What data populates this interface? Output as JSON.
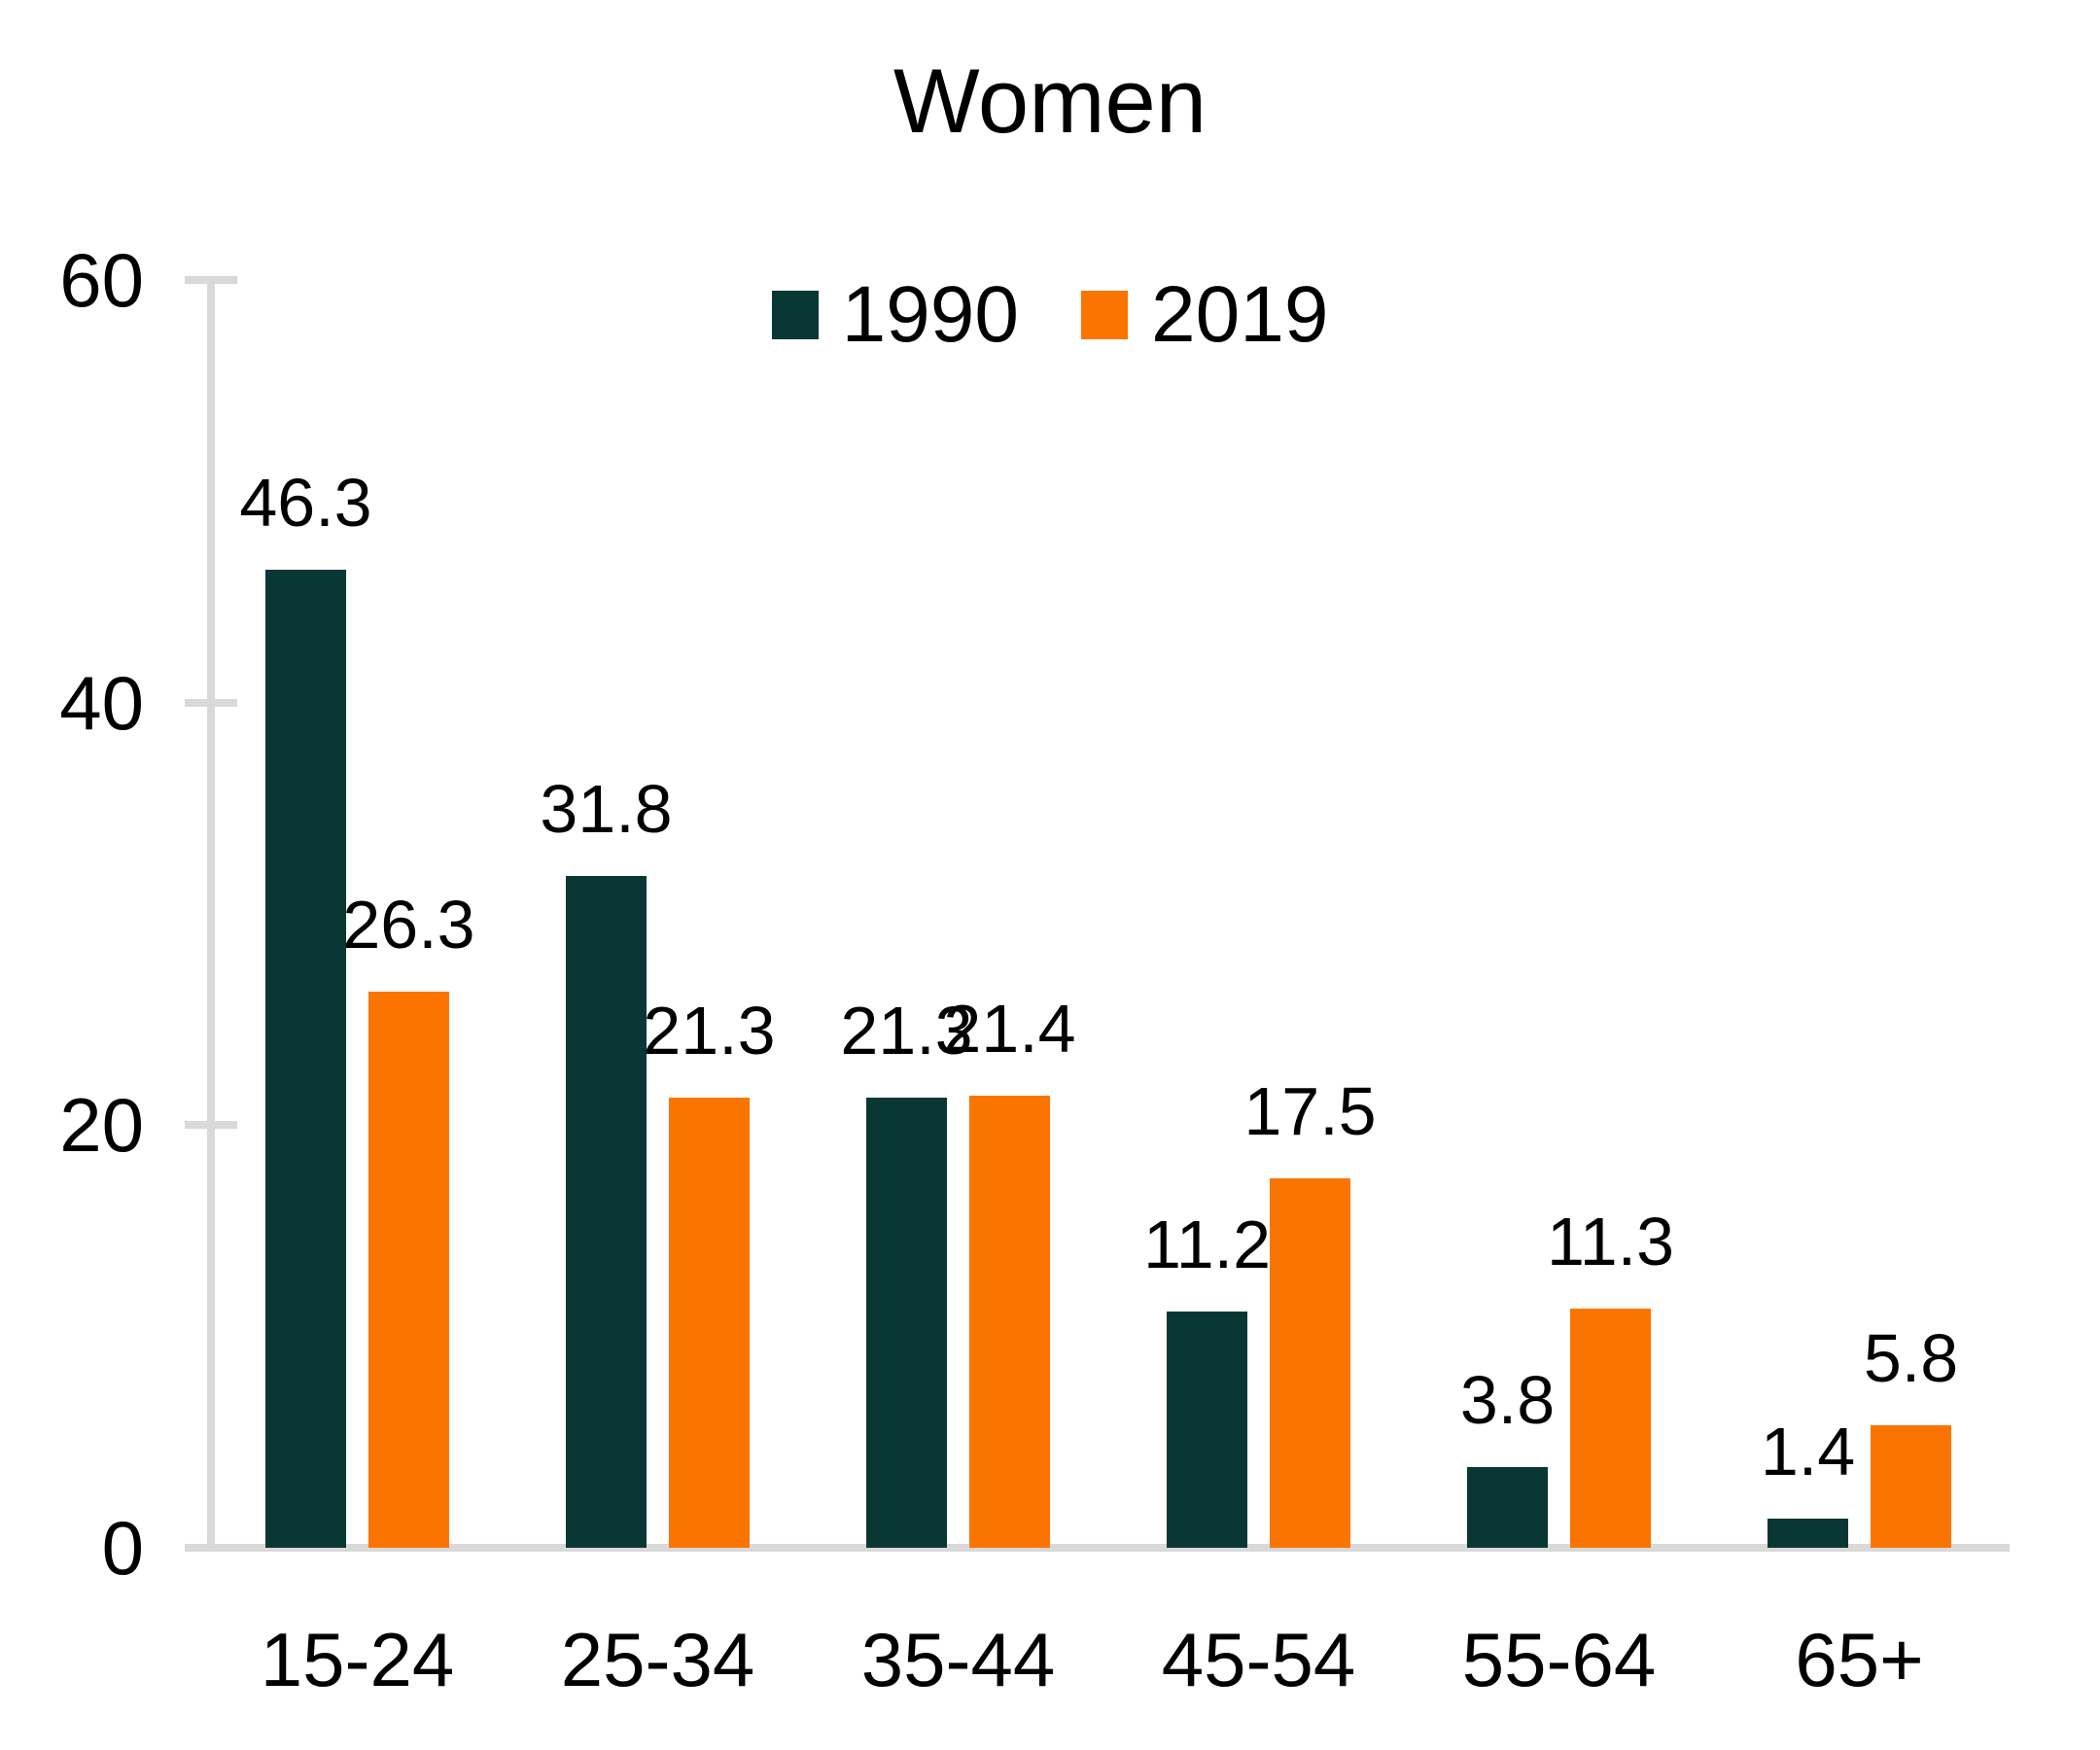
{
  "chart_data": {
    "type": "bar",
    "title": "Women",
    "categories": [
      "15-24",
      "25-34",
      "35-44",
      "45-54",
      "55-64",
      "65+"
    ],
    "series": [
      {
        "name": "1990",
        "color": "#093734",
        "values": [
          46.3,
          31.8,
          21.3,
          11.2,
          3.8,
          1.4
        ]
      },
      {
        "name": "2019",
        "color": "#FC7400",
        "values": [
          26.3,
          21.3,
          21.4,
          17.5,
          11.3,
          5.8
        ]
      }
    ],
    "ylim": [
      0,
      60
    ],
    "y_ticks": [
      0,
      20,
      40,
      60
    ],
    "grid": false,
    "legend_position": "top-center",
    "axis_color": "#D9D9D9",
    "text_color": "#000000",
    "background_color": "#FFFFFF"
  }
}
